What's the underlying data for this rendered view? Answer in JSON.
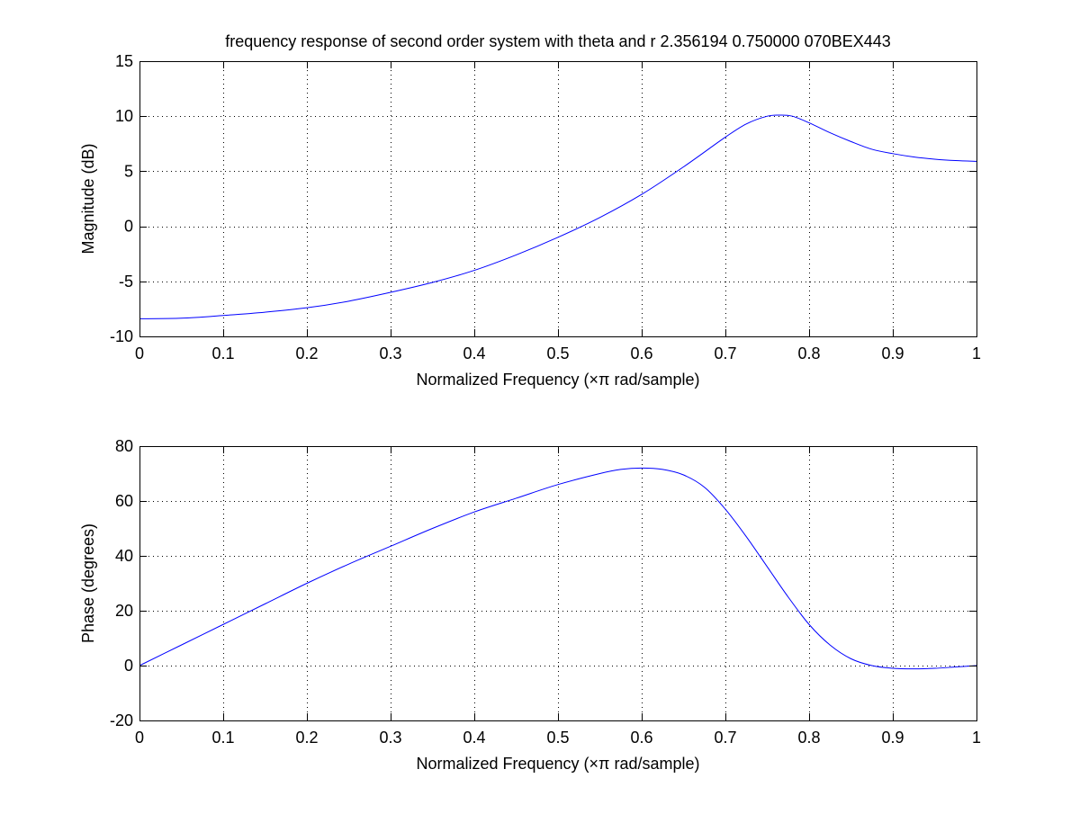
{
  "figure": {
    "title": "frequency response of second order system with theta and r 2.356194 0.750000 070BEX443"
  },
  "chart_data": [
    {
      "type": "line",
      "title": "frequency response of second order system with theta and r 2.356194 0.750000 070BEX443",
      "xlabel": "Normalized Frequency  (×π rad/sample)",
      "ylabel": "Magnitude (dB)",
      "xlim": [
        0,
        1
      ],
      "ylim": [
        -10,
        15
      ],
      "xticks": [
        0,
        0.1,
        0.2,
        0.3,
        0.4,
        0.5,
        0.6,
        0.7,
        0.8,
        0.9,
        1
      ],
      "xtick_labels": [
        "0",
        "0.1",
        "0.2",
        "0.3",
        "0.4",
        "0.5",
        "0.6",
        "0.7",
        "0.8",
        "0.9",
        "1"
      ],
      "yticks": [
        -10,
        -5,
        0,
        5,
        10,
        15
      ],
      "ytick_labels": [
        "-10",
        "-5",
        "0",
        "5",
        "10",
        "15"
      ],
      "grid": true,
      "series": [
        {
          "color": "#0000ff",
          "x": [
            0,
            0.05,
            0.1,
            0.15,
            0.2,
            0.25,
            0.3,
            0.35,
            0.4,
            0.45,
            0.5,
            0.55,
            0.6,
            0.65,
            0.7,
            0.725,
            0.75,
            0.765,
            0.78,
            0.8,
            0.825,
            0.85,
            0.875,
            0.9,
            0.925,
            0.95,
            0.975,
            1
          ],
          "y": [
            -8.4,
            -8.35,
            -8.1,
            -7.8,
            -7.4,
            -6.8,
            -6.0,
            -5.1,
            -4.0,
            -2.6,
            -1.0,
            0.8,
            2.9,
            5.4,
            8.1,
            9.3,
            10.0,
            10.1,
            10.0,
            9.4,
            8.5,
            7.7,
            7.0,
            6.6,
            6.3,
            6.1,
            5.97,
            5.9
          ]
        }
      ]
    },
    {
      "type": "line",
      "xlabel": "Normalized Frequency  (×π rad/sample)",
      "ylabel": "Phase (degrees)",
      "xlim": [
        0,
        1
      ],
      "ylim": [
        -20,
        80
      ],
      "xticks": [
        0,
        0.1,
        0.2,
        0.3,
        0.4,
        0.5,
        0.6,
        0.7,
        0.8,
        0.9,
        1
      ],
      "xtick_labels": [
        "0",
        "0.1",
        "0.2",
        "0.3",
        "0.4",
        "0.5",
        "0.6",
        "0.7",
        "0.8",
        "0.9",
        "1"
      ],
      "yticks": [
        -20,
        0,
        20,
        40,
        60,
        80
      ],
      "ytick_labels": [
        "-20",
        "0",
        "20",
        "40",
        "60",
        "80"
      ],
      "grid": true,
      "series": [
        {
          "color": "#0000ff",
          "x": [
            0,
            0.05,
            0.1,
            0.15,
            0.2,
            0.25,
            0.3,
            0.35,
            0.4,
            0.45,
            0.5,
            0.55,
            0.575,
            0.6,
            0.625,
            0.65,
            0.675,
            0.7,
            0.725,
            0.75,
            0.775,
            0.8,
            0.825,
            0.85,
            0.875,
            0.9,
            0.925,
            0.95,
            0.975,
            1
          ],
          "y": [
            0,
            7.5,
            15,
            22.5,
            30,
            37,
            43.5,
            50,
            56,
            61,
            66,
            70,
            71.5,
            72,
            71.5,
            69.5,
            65,
            57,
            47,
            36,
            25,
            15,
            7.5,
            2.5,
            0,
            -1,
            -1.2,
            -1,
            -0.5,
            0
          ]
        }
      ]
    }
  ]
}
